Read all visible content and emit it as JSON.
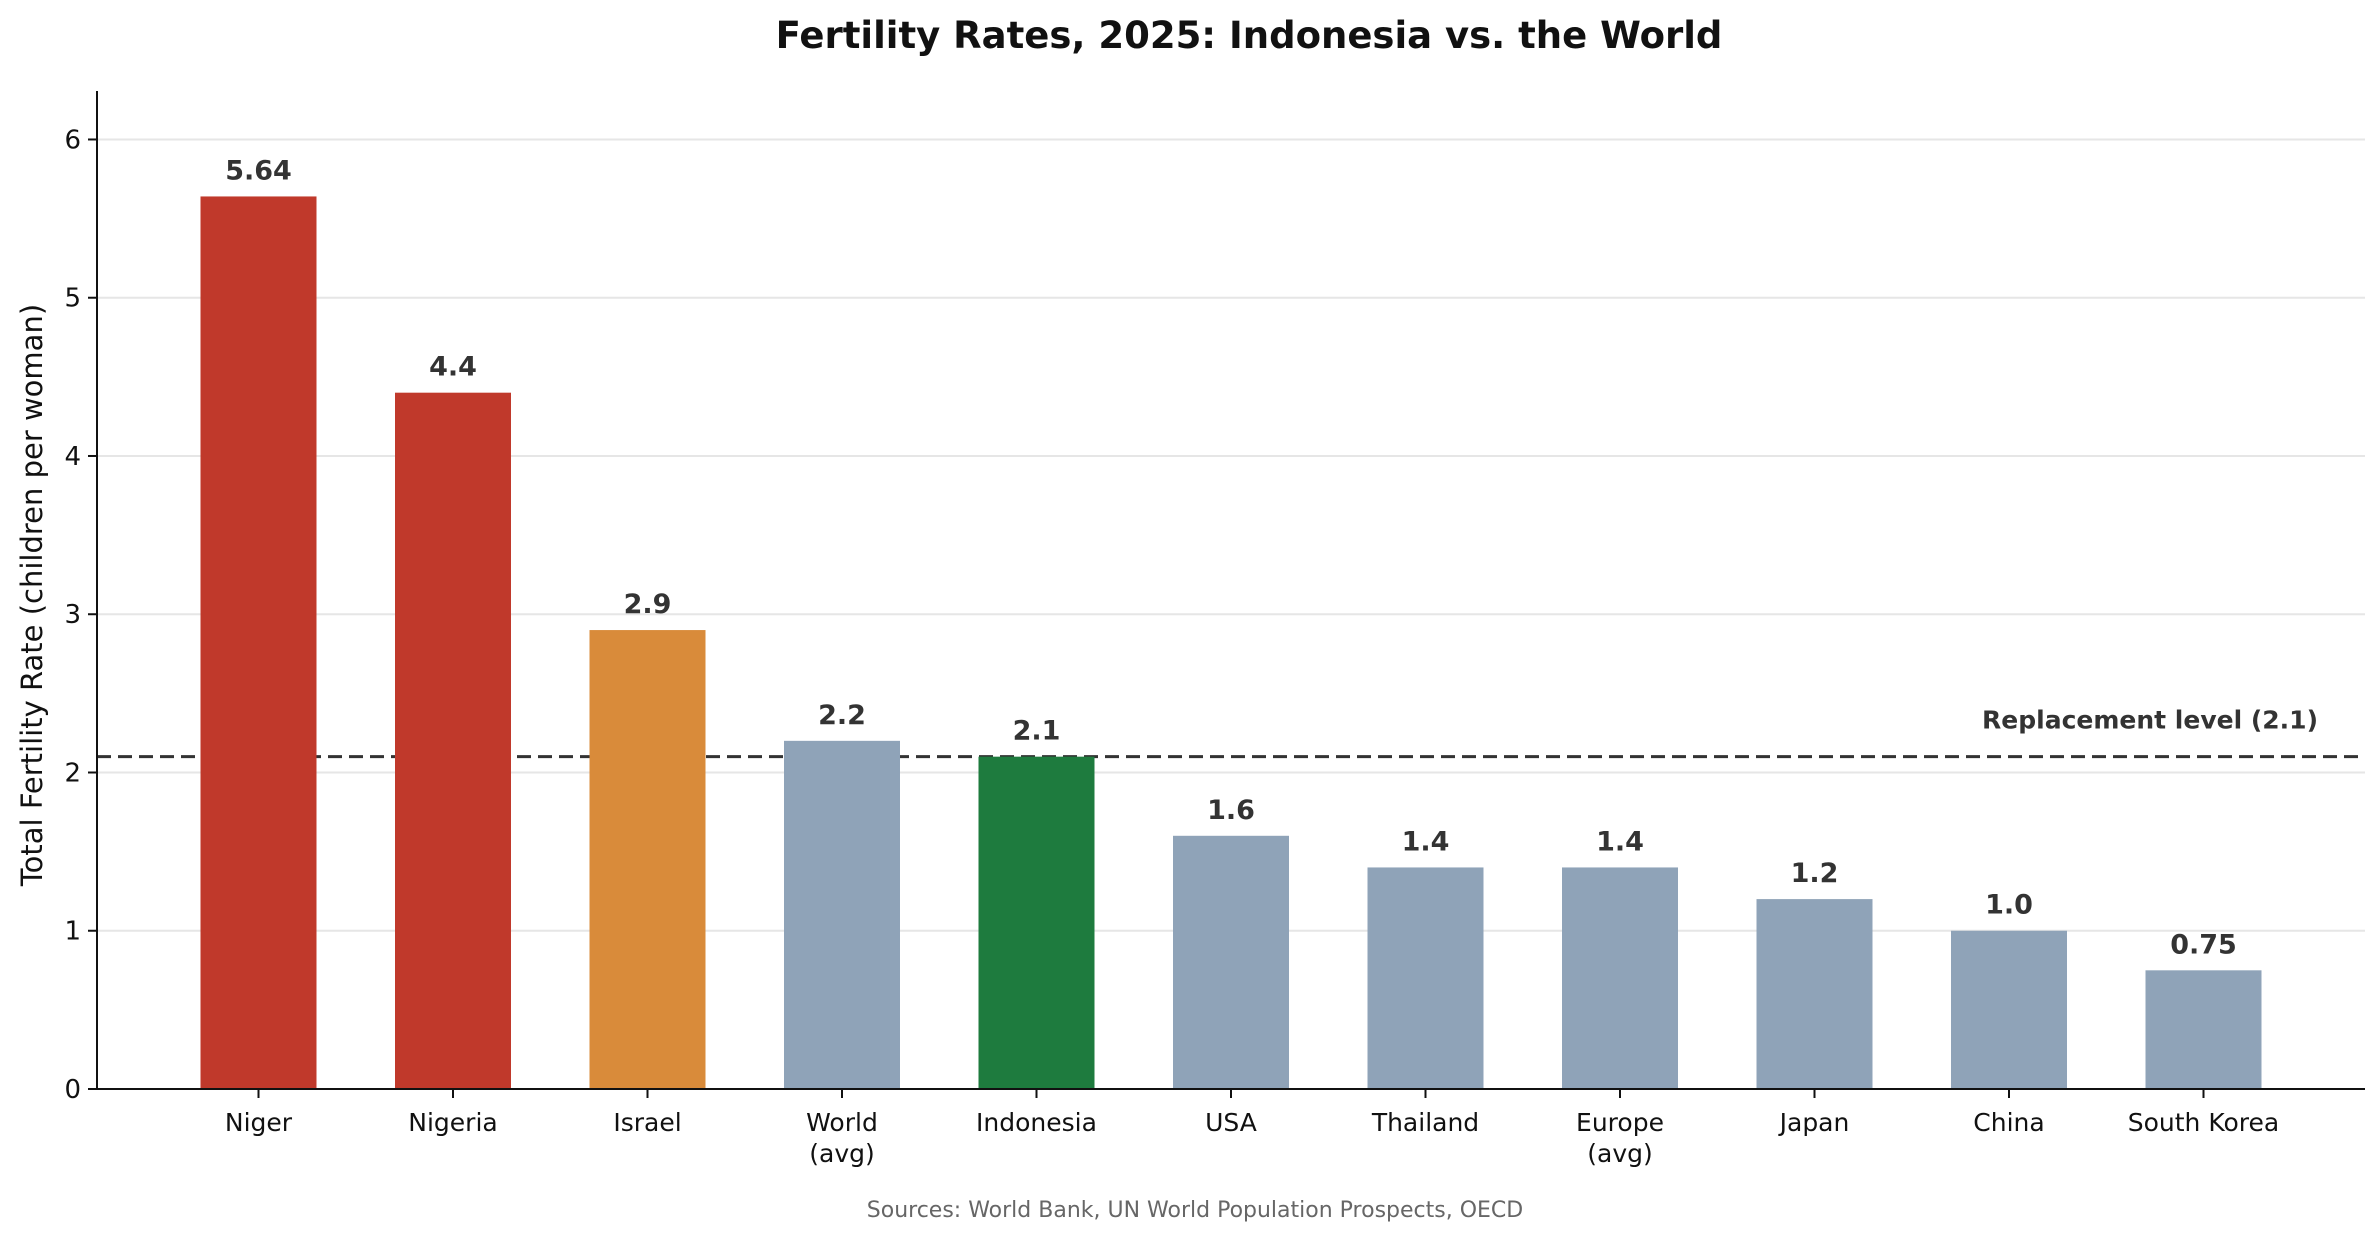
{
  "chart_data": {
    "type": "bar",
    "title": "Fertility Rates, 2025: Indonesia vs. the World",
    "ylabel": "Total Fertility Rate (children per woman)",
    "xlabel": "",
    "ylim": [
      0,
      6.3
    ],
    "yticks": [
      0,
      1,
      2,
      3,
      4,
      5,
      6
    ],
    "grid": "horizontal",
    "categories": [
      "Niger",
      "Nigeria",
      "Israel",
      "World\n(avg)",
      "Indonesia",
      "USA",
      "Thailand",
      "Europe\n(avg)",
      "Japan",
      "China",
      "South Korea"
    ],
    "values": [
      5.64,
      4.4,
      2.9,
      2.2,
      2.1,
      1.6,
      1.4,
      1.4,
      1.2,
      1.0,
      0.75
    ],
    "value_labels": [
      "5.64",
      "4.4",
      "2.9",
      "2.2",
      "2.1",
      "1.6",
      "1.4",
      "1.4",
      "1.2",
      "1.0",
      "0.75"
    ],
    "colors": [
      "#c0392b",
      "#c0392b",
      "#d98b3a",
      "#8fa3b8",
      "#1e7b3e",
      "#8fa3b8",
      "#8fa3b8",
      "#8fa3b8",
      "#8fa3b8",
      "#8fa3b8",
      "#8fa3b8"
    ],
    "reference_line": {
      "value": 2.1,
      "label": "Replacement level (2.1)",
      "style": "dashed",
      "color": "#333333"
    },
    "source": "Sources: World Bank, UN World Population Prospects, OECD"
  }
}
